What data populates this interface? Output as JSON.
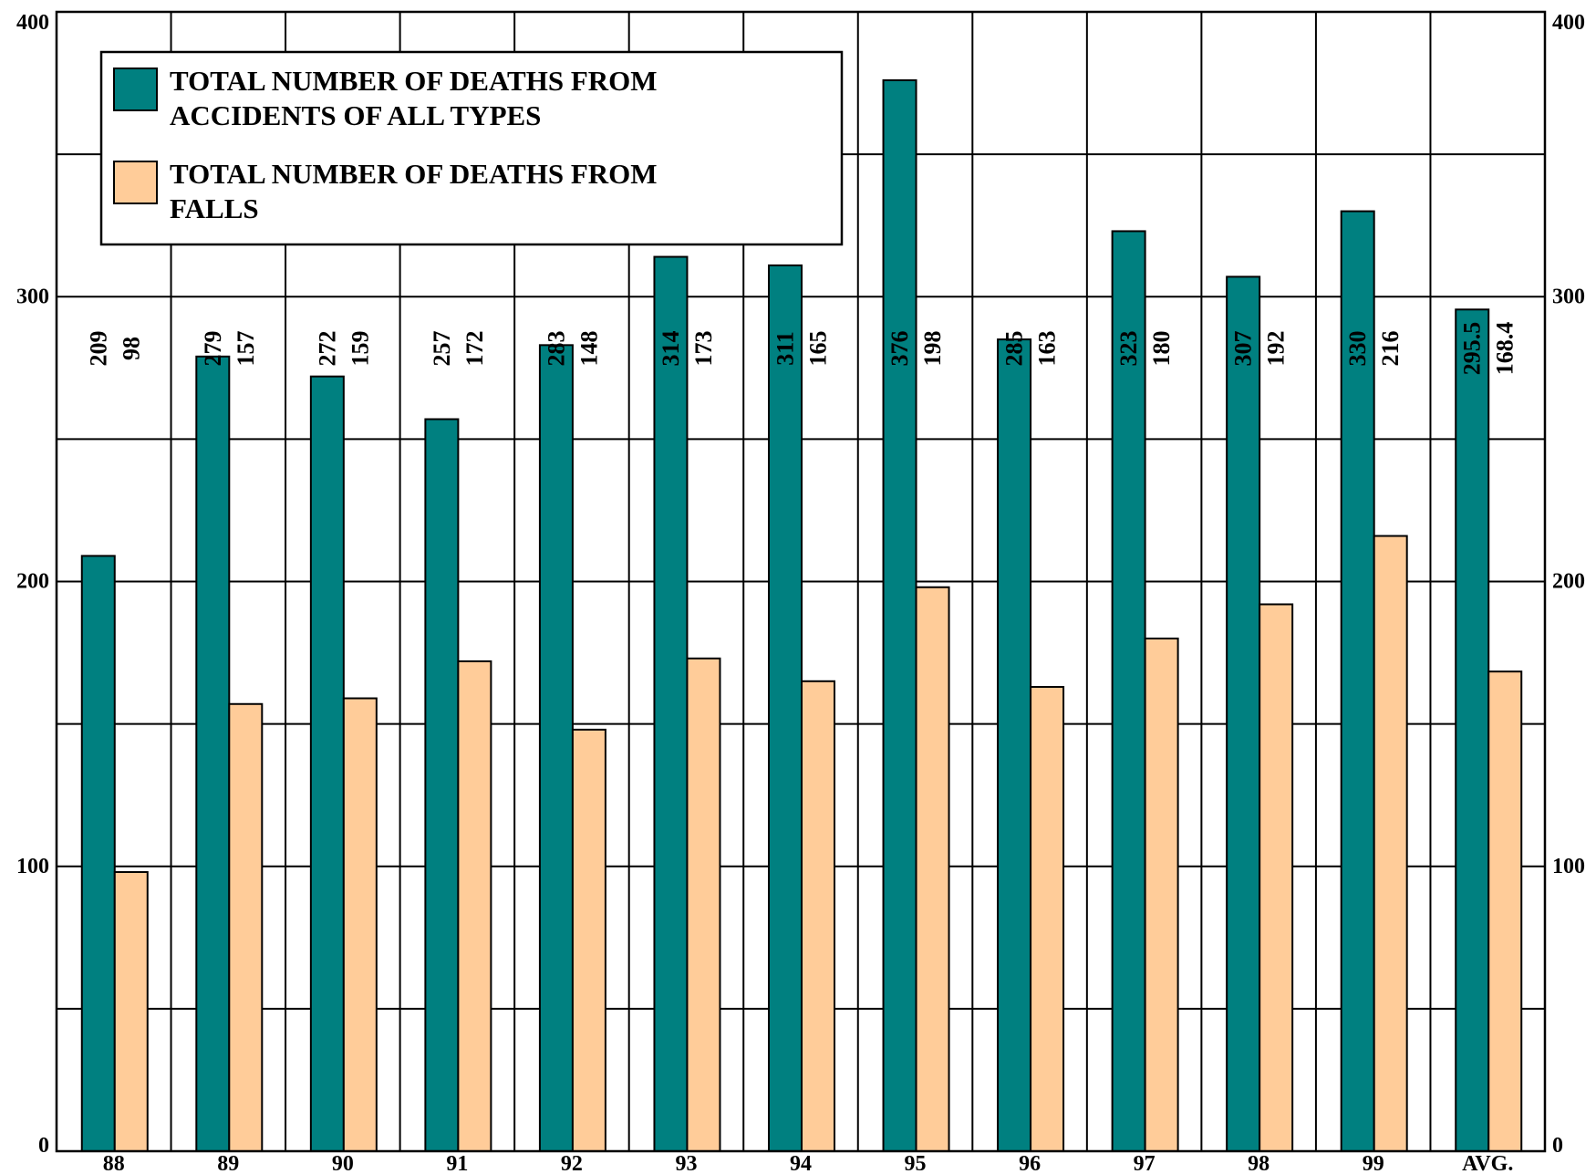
{
  "chart_data": {
    "type": "bar",
    "title": "",
    "xlabel": "",
    "ylabel": "",
    "categories": [
      "88",
      "89",
      "90",
      "91",
      "92",
      "93",
      "94",
      "95",
      "96",
      "97",
      "98",
      "99",
      "AVG."
    ],
    "series": [
      {
        "name": "TOTAL NUMBER OF DEATHS FROM ACCIDENTS OF ALL TYPES",
        "name_lines": [
          "TOTAL NUMBER OF DEATHS FROM",
          "ACCIDENTS OF ALL TYPES"
        ],
        "color": "#008080",
        "values": [
          209,
          279,
          272,
          257,
          283,
          314,
          311,
          376,
          285,
          323,
          307,
          330,
          295.5
        ],
        "labels": [
          "209",
          "279",
          "272",
          "257",
          "283",
          "314",
          "311",
          "376",
          "285",
          "323",
          "307",
          "330",
          "295.5"
        ]
      },
      {
        "name": "TOTAL NUMBER OF DEATHS FROM FALLS",
        "name_lines": [
          "TOTAL NUMBER OF DEATHS FROM",
          "FALLS"
        ],
        "color": "#FFCC99",
        "values": [
          98,
          157,
          159,
          172,
          148,
          173,
          165,
          198,
          163,
          180,
          192,
          216,
          168.4
        ],
        "labels": [
          "98",
          "157",
          "159",
          "172",
          "148",
          "173",
          "165",
          "198",
          "163",
          "180",
          "192",
          "216",
          "168.4"
        ]
      }
    ],
    "ylim": [
      0,
      400
    ],
    "yticks": [
      "0",
      "100",
      "200",
      "300",
      "400"
    ],
    "grid": true,
    "legend_position": "top-left",
    "y_axis_both_sides": true
  }
}
